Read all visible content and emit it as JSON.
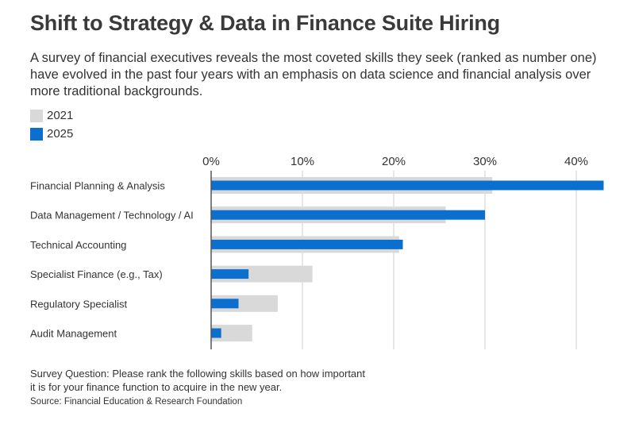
{
  "header": {
    "title": "Shift to Strategy & Data in Finance Suite Hiring",
    "subtitle": "A survey of financial executives reveals the most coveted skills they seek (ranked as number one) have evolved in the past four years with an emphasis on data science and financial analysis over more traditional backgrounds."
  },
  "legend": {
    "items": [
      {
        "label": "2021",
        "color": "#d9d9d9"
      },
      {
        "label": "2025",
        "color": "#0b6fcf"
      }
    ]
  },
  "chart_data": {
    "type": "bar",
    "orientation": "horizontal",
    "categories": [
      "Financial Planning & Analysis",
      "Data Management / Technology / AI",
      "Technical Accounting",
      "Specialist Finance (e.g., Tax)",
      "Regulatory Specialist",
      "Audit Management"
    ],
    "series": [
      {
        "name": "2021",
        "color": "#d9d9d9",
        "values": [
          30.8,
          25.7,
          20.6,
          11.1,
          7.3,
          4.5
        ]
      },
      {
        "name": "2025",
        "color": "#0b6fcf",
        "values": [
          43.0,
          30.0,
          21.0,
          4.1,
          3.0,
          1.1
        ]
      }
    ],
    "xlim": [
      0,
      43
    ],
    "xticks": [
      0,
      10,
      20,
      30,
      40
    ],
    "tick_labels": [
      "0%",
      "10%",
      "20%",
      "30%",
      "40%"
    ],
    "grid": true,
    "legend_position": "top-left"
  },
  "footer": {
    "note": "Survey Question: Please rank the following skills based on how important it is for your finance function to acquire in the new year.",
    "source": "Source: Financial Education & Research Foundation"
  }
}
